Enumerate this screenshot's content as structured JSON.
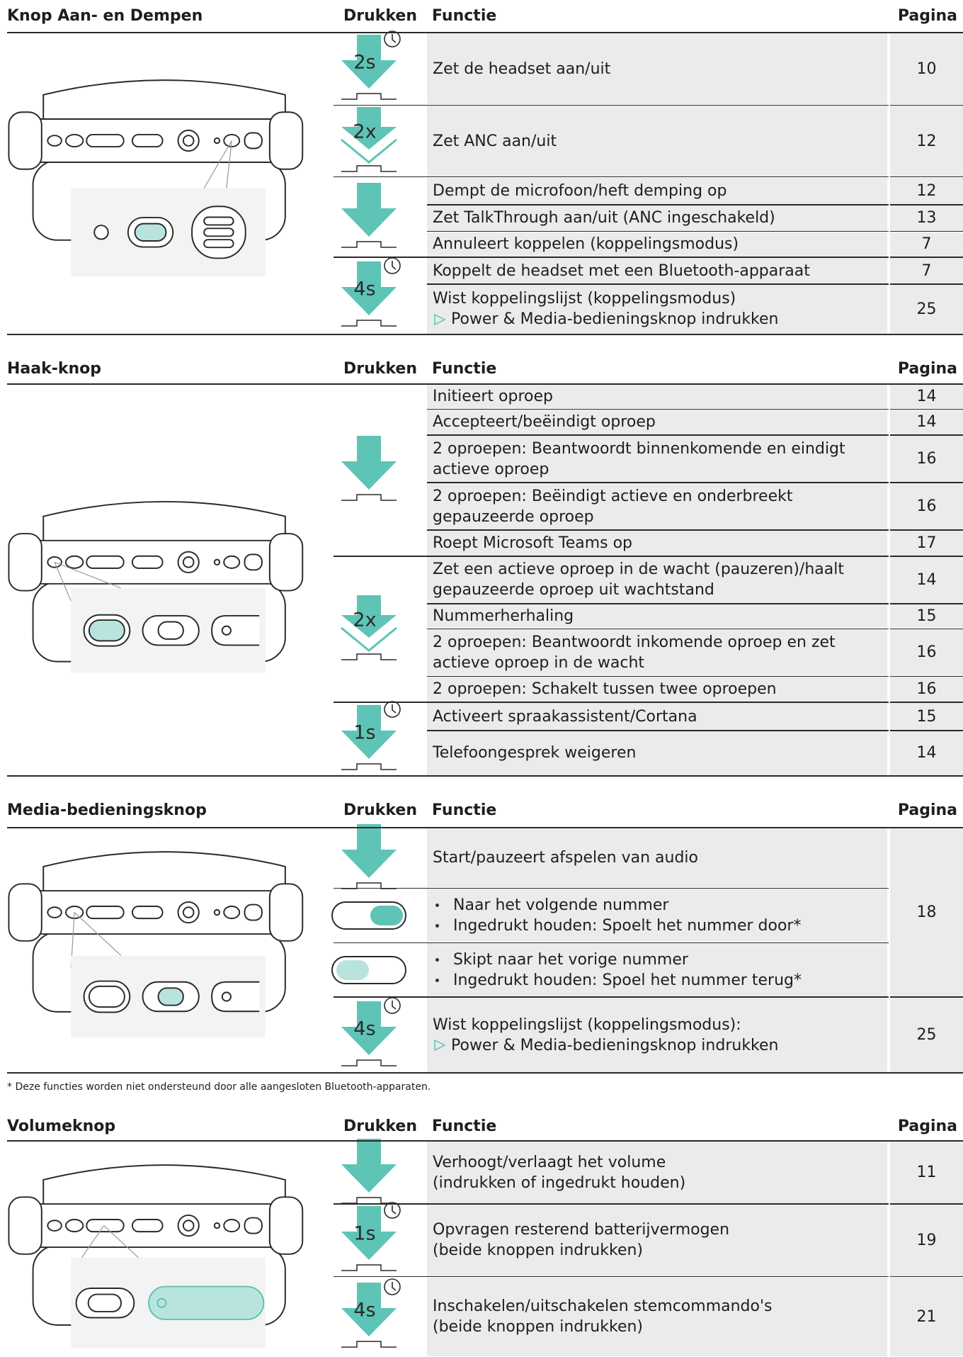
{
  "sections": [
    {
      "title": "Knop Aan- en Dempen",
      "press": "Drukken",
      "function": "Functie",
      "page": "Pagina",
      "groups": [
        {
          "kind": "hold",
          "label": "2s",
          "rows": [
            {
              "lines": [
                "Zet de headset aan/uit"
              ],
              "page": 10
            }
          ]
        },
        {
          "kind": "double",
          "label": "2x",
          "rows": [
            {
              "lines": [
                "Zet ANC aan/uit"
              ],
              "page": 12
            }
          ]
        },
        {
          "kind": "press",
          "rows": [
            {
              "lines": [
                "Dempt de microfoon/heft demping op"
              ],
              "page": 12
            },
            {
              "lines": [
                "Zet TalkThrough aan/uit (ANC ingeschakeld)"
              ],
              "page": 13
            },
            {
              "lines": [
                "Annuleert koppelen (koppelingsmodus)"
              ],
              "page": 7
            }
          ]
        },
        {
          "kind": "hold",
          "label": "4s",
          "rows": [
            {
              "lines": [
                "Koppelt de headset met een Bluetooth-apparaat"
              ],
              "page": 7
            },
            {
              "lines": [
                "Wist koppelingslijst (koppelingsmodus)"
              ],
              "note": "Power & Media-bedieningsknop indrukken",
              "page": 25
            }
          ]
        }
      ]
    },
    {
      "title": "Haak-knop",
      "press": "Drukken",
      "function": "Functie",
      "page": "Pagina",
      "groups": [
        {
          "kind": "press",
          "rows": [
            {
              "lines": [
                "Initieert oproep"
              ],
              "page": 14
            },
            {
              "lines": [
                "Accepteert/beëindigt oproep"
              ],
              "page": 14
            },
            {
              "lines": [
                "2 oproepen: Beantwoordt binnenkomende en eindigt actieve oproep"
              ],
              "page": 16
            },
            {
              "lines": [
                "2 oproepen: Beëindigt actieve en onderbreekt gepauzeerde oproep"
              ],
              "page": 16
            },
            {
              "lines": [
                "Roept Microsoft Teams op"
              ],
              "page": 17
            }
          ]
        },
        {
          "kind": "double",
          "label": "2x",
          "rows": [
            {
              "lines": [
                "Zet een actieve oproep in de wacht (pauzeren)/haalt gepauzeerde oproep uit wachtstand"
              ],
              "page": 14
            },
            {
              "lines": [
                "Nummerherhaling"
              ],
              "page": 15
            },
            {
              "lines": [
                "2 oproepen: Beantwoordt inkomende oproep en zet actieve oproep in de wacht"
              ],
              "page": 16
            },
            {
              "lines": [
                "2 oproepen: Schakelt tussen twee oproepen"
              ],
              "page": 16
            }
          ]
        },
        {
          "kind": "hold",
          "label": "1s",
          "rows": [
            {
              "lines": [
                "Activeert spraakassistent/Cortana"
              ],
              "page": 15
            },
            {
              "lines": [
                "Telefoongesprek weigeren"
              ],
              "page": 14
            }
          ]
        }
      ]
    },
    {
      "title": "Media-bedieningsknop",
      "press": "Drukken",
      "function": "Functie",
      "page": "Pagina",
      "groups": [
        {
          "kind": "press",
          "rows": [
            {
              "lines": [
                "Start/pauzeert afspelen van audio"
              ],
              "page": 18
            }
          ]
        },
        {
          "kind": "slide-next",
          "rows": [
            {
              "bullets": [
                "Naar het volgende nummer",
                "Ingedrukt houden: Spoelt het nummer door*"
              ]
            }
          ]
        },
        {
          "kind": "slide-prev",
          "rows": [
            {
              "bullets": [
                "Skipt naar het vorige nummer",
                "Ingedrukt houden: Spoel het nummer terug*"
              ]
            }
          ]
        },
        {
          "kind": "hold",
          "label": "4s",
          "rows": [
            {
              "lines": [
                "Wist koppelingslijst (koppelingsmodus):"
              ],
              "note": "Power & Media-bedieningsknop indrukken",
              "page": 25
            }
          ]
        }
      ]
    },
    {
      "title": "Volumeknop",
      "press": "Drukken",
      "function": "Functie",
      "page": "Pagina",
      "groups": [
        {
          "kind": "press",
          "rows": [
            {
              "lines": [
                "Verhoogt/verlaagt het volume",
                "(indrukken of ingedrukt houden)"
              ],
              "page": 11
            }
          ]
        },
        {
          "kind": "hold",
          "label": "1s",
          "rows": [
            {
              "lines": [
                "Opvragen resterend batterijvermogen",
                "(beide knoppen indrukken)"
              ],
              "page": 19
            }
          ]
        },
        {
          "kind": "hold",
          "label": "4s",
          "rows": [
            {
              "lines": [
                "Inschakelen/uitschakelen stemcommando's",
                "(beide knoppen indrukken)"
              ],
              "page": 21
            }
          ]
        }
      ]
    }
  ],
  "footnote": "* Deze functies worden niet ondersteund door alle aangesloten Bluetooth-apparaten."
}
